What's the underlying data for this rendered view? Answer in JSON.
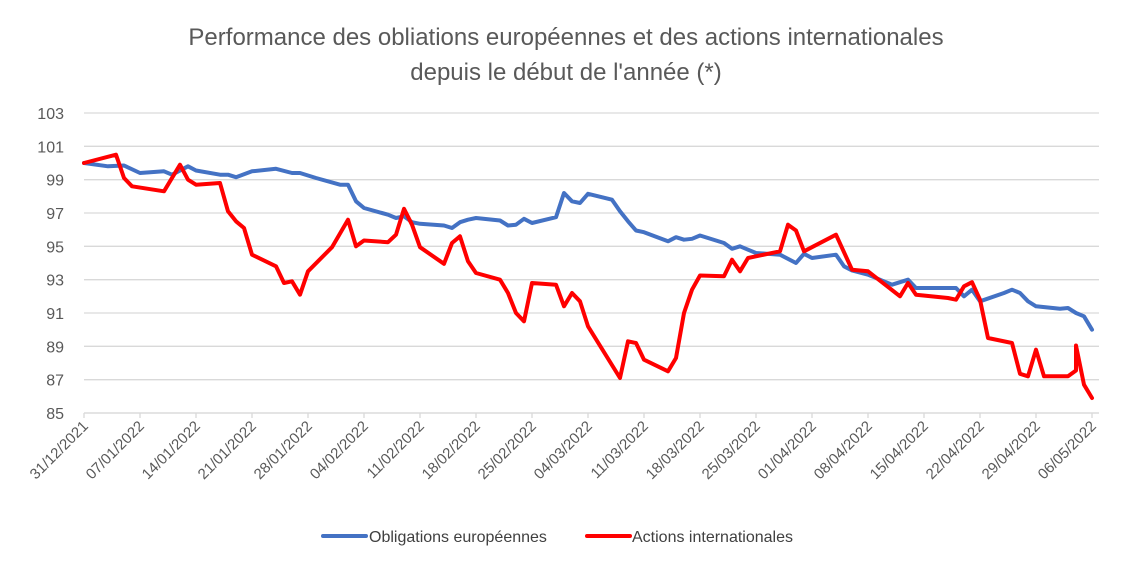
{
  "chart_data": {
    "type": "line",
    "title": [
      "Performance des obliations européennes et des actions internationales",
      "depuis le début de l'année (*)"
    ],
    "xlabel": "",
    "ylabel": "",
    "ylim": [
      85,
      103
    ],
    "yticks": [
      85,
      87,
      89,
      91,
      93,
      95,
      97,
      99,
      101,
      103
    ],
    "x_start": "31/12/2021",
    "x_end": "06/05/2022",
    "xtick_labels": [
      "31/12/2021",
      "07/01/2022",
      "14/01/2022",
      "21/01/2022",
      "28/01/2022",
      "04/02/2022",
      "11/02/2022",
      "18/02/2022",
      "25/02/2022",
      "04/03/2022",
      "11/03/2022",
      "18/03/2022",
      "25/03/2022",
      "01/04/2022",
      "08/04/2022",
      "15/04/2022",
      "22/04/2022",
      "29/04/2022",
      "06/05/2022"
    ],
    "grid": true,
    "legend_position": "bottom",
    "series": [
      {
        "name": "Obligations européennes",
        "color": "#4472C4",
        "points": [
          [
            "31/12/2021",
            100.0
          ],
          [
            "03/01/2022",
            99.8
          ],
          [
            "05/01/2022",
            99.85
          ],
          [
            "07/01/2022",
            99.4
          ],
          [
            "10/01/2022",
            99.5
          ],
          [
            "11/01/2022",
            99.3
          ],
          [
            "13/01/2022",
            99.8
          ],
          [
            "14/01/2022",
            99.55
          ],
          [
            "17/01/2022",
            99.3
          ],
          [
            "18/01/2022",
            99.3
          ],
          [
            "19/01/2022",
            99.15
          ],
          [
            "21/01/2022",
            99.5
          ],
          [
            "24/01/2022",
            99.65
          ],
          [
            "26/01/2022",
            99.4
          ],
          [
            "27/01/2022",
            99.4
          ],
          [
            "29/01/2022",
            99.1
          ],
          [
            "01/02/2022",
            98.7
          ],
          [
            "02/02/2022",
            98.7
          ],
          [
            "03/02/2022",
            97.7
          ],
          [
            "04/02/2022",
            97.3
          ],
          [
            "07/02/2022",
            96.9
          ],
          [
            "08/02/2022",
            96.7
          ],
          [
            "09/02/2022",
            96.8
          ],
          [
            "10/02/2022",
            96.45
          ],
          [
            "11/02/2022",
            96.35
          ],
          [
            "14/02/2022",
            96.25
          ],
          [
            "15/02/2022",
            96.1
          ],
          [
            "16/02/2022",
            96.45
          ],
          [
            "17/02/2022",
            96.6
          ],
          [
            "18/02/2022",
            96.7
          ],
          [
            "21/02/2022",
            96.55
          ],
          [
            "22/02/2022",
            96.25
          ],
          [
            "23/02/2022",
            96.3
          ],
          [
            "24/02/2022",
            96.65
          ],
          [
            "25/02/2022",
            96.4
          ],
          [
            "28/02/2022",
            96.75
          ],
          [
            "01/03/2022",
            98.2
          ],
          [
            "02/03/2022",
            97.7
          ],
          [
            "03/03/2022",
            97.6
          ],
          [
            "04/03/2022",
            98.15
          ],
          [
            "07/03/2022",
            97.8
          ],
          [
            "08/03/2022",
            97.1
          ],
          [
            "09/03/2022",
            96.5
          ],
          [
            "10/03/2022",
            95.95
          ],
          [
            "11/03/2022",
            95.85
          ],
          [
            "14/03/2022",
            95.3
          ],
          [
            "15/03/2022",
            95.55
          ],
          [
            "16/03/2022",
            95.4
          ],
          [
            "17/03/2022",
            95.45
          ],
          [
            "18/03/2022",
            95.65
          ],
          [
            "21/03/2022",
            95.2
          ],
          [
            "22/03/2022",
            94.85
          ],
          [
            "23/03/2022",
            95.0
          ],
          [
            "24/03/2022",
            94.8
          ],
          [
            "25/03/2022",
            94.6
          ],
          [
            "28/03/2022",
            94.5
          ],
          [
            "30/03/2022",
            94.0
          ],
          [
            "31/03/2022",
            94.55
          ],
          [
            "01/04/2022",
            94.3
          ],
          [
            "04/04/2022",
            94.5
          ],
          [
            "05/04/2022",
            93.8
          ],
          [
            "06/04/2022",
            93.55
          ],
          [
            "08/04/2022",
            93.3
          ],
          [
            "11/04/2022",
            92.7
          ],
          [
            "13/04/2022",
            93.0
          ],
          [
            "14/04/2022",
            92.5
          ],
          [
            "19/04/2022",
            92.5
          ],
          [
            "20/04/2022",
            92.0
          ],
          [
            "21/04/2022",
            92.4
          ],
          [
            "22/04/2022",
            91.7
          ],
          [
            "25/04/2022",
            92.2
          ],
          [
            "26/04/2022",
            92.4
          ],
          [
            "27/04/2022",
            92.2
          ],
          [
            "28/04/2022",
            91.7
          ],
          [
            "29/04/2022",
            91.4
          ],
          [
            "02/05/2022",
            91.25
          ],
          [
            "03/05/2022",
            91.3
          ],
          [
            "04/05/2022",
            91.0
          ],
          [
            "05/05/2022",
            90.8
          ],
          [
            "06/05/2022",
            90.0
          ]
        ]
      },
      {
        "name": "Actions internationales",
        "color": "#FF0000",
        "points": [
          [
            "31/12/2021",
            100.0
          ],
          [
            "04/01/2022",
            100.5
          ],
          [
            "05/01/2022",
            99.1
          ],
          [
            "06/01/2022",
            98.6
          ],
          [
            "10/01/2022",
            98.3
          ],
          [
            "12/01/2022",
            99.9
          ],
          [
            "13/01/2022",
            99.0
          ],
          [
            "14/01/2022",
            98.7
          ],
          [
            "17/01/2022",
            98.8
          ],
          [
            "18/01/2022",
            97.1
          ],
          [
            "19/01/2022",
            96.5
          ],
          [
            "20/01/2022",
            96.1
          ],
          [
            "21/01/2022",
            94.5
          ],
          [
            "24/01/2022",
            93.8
          ],
          [
            "25/01/2022",
            92.8
          ],
          [
            "26/01/2022",
            92.9
          ],
          [
            "27/01/2022",
            92.1
          ],
          [
            "28/01/2022",
            93.5
          ],
          [
            "31/01/2022",
            94.95
          ],
          [
            "02/02/2022",
            96.6
          ],
          [
            "03/02/2022",
            95.0
          ],
          [
            "04/02/2022",
            95.35
          ],
          [
            "07/02/2022",
            95.25
          ],
          [
            "08/02/2022",
            95.7
          ],
          [
            "09/02/2022",
            97.25
          ],
          [
            "10/02/2022",
            96.3
          ],
          [
            "11/02/2022",
            94.95
          ],
          [
            "14/02/2022",
            93.95
          ],
          [
            "15/02/2022",
            95.2
          ],
          [
            "16/02/2022",
            95.6
          ],
          [
            "17/02/2022",
            94.1
          ],
          [
            "18/02/2022",
            93.4
          ],
          [
            "21/02/2022",
            93.0
          ],
          [
            "22/02/2022",
            92.2
          ],
          [
            "23/02/2022",
            91.0
          ],
          [
            "24/02/2022",
            90.5
          ],
          [
            "25/02/2022",
            92.8
          ],
          [
            "28/02/2022",
            92.7
          ],
          [
            "01/03/2022",
            91.4
          ],
          [
            "02/03/2022",
            92.2
          ],
          [
            "03/03/2022",
            91.7
          ],
          [
            "04/03/2022",
            90.2
          ],
          [
            "08/03/2022",
            87.1
          ],
          [
            "09/03/2022",
            89.3
          ],
          [
            "10/03/2022",
            89.2
          ],
          [
            "11/03/2022",
            88.2
          ],
          [
            "14/03/2022",
            87.5
          ],
          [
            "15/03/2022",
            88.3
          ],
          [
            "16/03/2022",
            91.0
          ],
          [
            "17/03/2022",
            92.4
          ],
          [
            "18/03/2022",
            93.25
          ],
          [
            "21/03/2022",
            93.2
          ],
          [
            "22/03/2022",
            94.2
          ],
          [
            "23/03/2022",
            93.5
          ],
          [
            "24/03/2022",
            94.3
          ],
          [
            "25/03/2022",
            94.4
          ],
          [
            "28/03/2022",
            94.7
          ],
          [
            "29/03/2022",
            96.3
          ],
          [
            "30/03/2022",
            95.95
          ],
          [
            "31/03/2022",
            94.7
          ],
          [
            "04/04/2022",
            95.7
          ],
          [
            "06/04/2022",
            93.6
          ],
          [
            "08/04/2022",
            93.5
          ],
          [
            "12/04/2022",
            92.0
          ],
          [
            "13/04/2022",
            92.8
          ],
          [
            "14/04/2022",
            92.1
          ],
          [
            "18/04/2022",
            91.9
          ],
          [
            "19/04/2022",
            91.8
          ],
          [
            "20/04/2022",
            92.6
          ],
          [
            "21/04/2022",
            92.85
          ],
          [
            "22/04/2022",
            91.8
          ],
          [
            "23/04/2022",
            89.5
          ],
          [
            "26/04/2022",
            89.2
          ],
          [
            "27/04/2022",
            87.35
          ],
          [
            "28/04/2022",
            87.2
          ],
          [
            "29/04/2022",
            88.8
          ],
          [
            "30/04/2022",
            87.2
          ],
          [
            "03/05/2022",
            87.2
          ],
          [
            "04/05/2022",
            87.55
          ],
          [
            "04/05/2022",
            89.05
          ],
          [
            "05/05/2022",
            86.7
          ],
          [
            "06/05/2022",
            85.9
          ]
        ]
      }
    ]
  }
}
